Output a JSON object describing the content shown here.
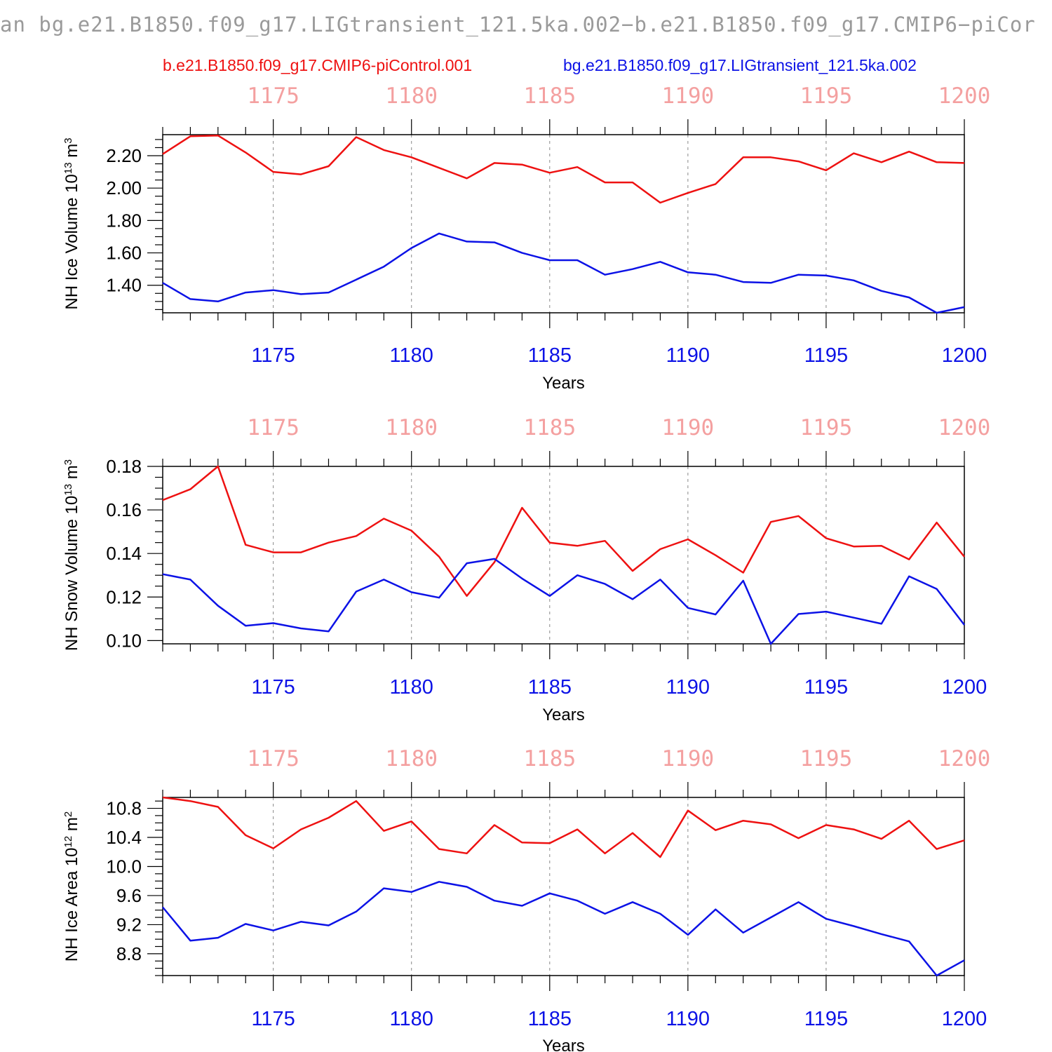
{
  "figure_title": "an bg.e21.B1850.f09_g17.LIGtransient_121.5ka.002−b.e21.B1850.f09_g17.CMIP6−piCor",
  "legend": {
    "series_a": "b.e21.B1850.f09_g17.CMIP6-piControl.001",
    "series_b": "bg.e21.B1850.f09_g17.LIGtransient_121.5ka.002"
  },
  "colors": {
    "series_a": "#ee1111",
    "series_b": "#0c12e6",
    "top_ticks": "#f4a0a0",
    "bottom_ticks": "#0c12e6",
    "title": "#9a9a9a"
  },
  "chart_data": [
    {
      "type": "line",
      "ylabel_main": "NH Ice Volume 10",
      "ylabel_exp": "13",
      "ylabel_unit": " m",
      "ylabel_unit_exp": "3",
      "xlabel": "Years",
      "xlim": [
        1171,
        1200
      ],
      "ylim": [
        1.23,
        2.33
      ],
      "y_ticks": [
        "1.40",
        "1.60",
        "1.80",
        "2.00",
        "2.20"
      ],
      "y_tick_values": [
        1.4,
        1.6,
        1.8,
        2.0,
        2.2
      ],
      "y_minor_step": 0.05,
      "x_ticks": [
        "1175",
        "1180",
        "1185",
        "1190",
        "1195",
        "1200"
      ],
      "x_tick_values": [
        1175,
        1180,
        1185,
        1190,
        1195,
        1200
      ],
      "top_x_ticks": [
        "1175",
        "1180",
        "1185",
        "1190",
        "1195",
        "1200"
      ],
      "grid": "dashed vertical at major x ticks",
      "x": [
        1171,
        1172,
        1173,
        1174,
        1175,
        1176,
        1177,
        1178,
        1179,
        1180,
        1181,
        1182,
        1183,
        1184,
        1185,
        1186,
        1187,
        1188,
        1189,
        1190,
        1191,
        1192,
        1193,
        1194,
        1195,
        1196,
        1197,
        1198,
        1199,
        1200
      ],
      "series": [
        {
          "name": "b.e21.B1850.f09_g17.CMIP6-piControl.001",
          "key": "series_a",
          "values": [
            2.21,
            2.32,
            2.325,
            2.22,
            2.1,
            2.085,
            2.135,
            2.315,
            2.235,
            2.19,
            2.125,
            2.06,
            2.155,
            2.145,
            2.095,
            2.13,
            2.035,
            2.035,
            1.91,
            1.97,
            2.025,
            2.19,
            2.19,
            2.165,
            2.11,
            2.215,
            2.16,
            2.225,
            2.16,
            2.155
          ]
        },
        {
          "name": "bg.e21.B1850.f09_g17.LIGtransient_121.5ka.002",
          "key": "series_b",
          "values": [
            1.415,
            1.315,
            1.3,
            1.355,
            1.37,
            1.345,
            1.355,
            1.435,
            1.515,
            1.63,
            1.72,
            1.67,
            1.665,
            1.6,
            1.555,
            1.555,
            1.465,
            1.5,
            1.545,
            1.48,
            1.465,
            1.42,
            1.415,
            1.465,
            1.46,
            1.43,
            1.365,
            1.325,
            1.23,
            1.265
          ]
        }
      ]
    },
    {
      "type": "line",
      "ylabel_main": "NH Snow Volume 10",
      "ylabel_exp": "13",
      "ylabel_unit": " m",
      "ylabel_unit_exp": "3",
      "xlabel": "Years",
      "xlim": [
        1171,
        1200
      ],
      "ylim": [
        0.0985,
        0.18
      ],
      "y_ticks": [
        "0.10",
        "0.12",
        "0.14",
        "0.16",
        "0.18"
      ],
      "y_tick_values": [
        0.1,
        0.12,
        0.14,
        0.16,
        0.18
      ],
      "y_minor_step": 0.005,
      "x_ticks": [
        "1175",
        "1180",
        "1185",
        "1190",
        "1195",
        "1200"
      ],
      "x_tick_values": [
        1175,
        1180,
        1185,
        1190,
        1195,
        1200
      ],
      "top_x_ticks": [
        "1175",
        "1180",
        "1185",
        "1190",
        "1195",
        "1200"
      ],
      "grid": "dashed vertical at major x ticks",
      "x": [
        1171,
        1172,
        1173,
        1174,
        1175,
        1176,
        1177,
        1178,
        1179,
        1180,
        1181,
        1182,
        1183,
        1184,
        1185,
        1186,
        1187,
        1188,
        1189,
        1190,
        1191,
        1192,
        1193,
        1194,
        1195,
        1196,
        1197,
        1198,
        1199,
        1200
      ],
      "series": [
        {
          "name": "b.e21.B1850.f09_g17.CMIP6-piControl.001",
          "key": "series_a",
          "values": [
            0.1645,
            0.1695,
            0.18,
            0.144,
            0.1405,
            0.1405,
            0.145,
            0.148,
            0.156,
            0.1505,
            0.1385,
            0.1205,
            0.136,
            0.161,
            0.145,
            0.1435,
            0.1458,
            0.132,
            0.142,
            0.1465,
            0.1392,
            0.1312,
            0.1545,
            0.1572,
            0.147,
            0.1432,
            0.1435,
            0.1373,
            0.1542,
            0.1385
          ]
        },
        {
          "name": "bg.e21.B1850.f09_g17.LIGtransient_121.5ka.002",
          "key": "series_b",
          "values": [
            0.1305,
            0.128,
            0.116,
            0.1068,
            0.108,
            0.1056,
            0.1042,
            0.1225,
            0.128,
            0.1222,
            0.1197,
            0.1355,
            0.1375,
            0.1285,
            0.1205,
            0.13,
            0.126,
            0.119,
            0.128,
            0.115,
            0.112,
            0.1275,
            0.0985,
            0.1122,
            0.1133,
            0.1105,
            0.1077,
            0.1295,
            0.1237,
            0.1072
          ]
        }
      ]
    },
    {
      "type": "line",
      "ylabel_main": "NH Ice Area 10",
      "ylabel_exp": "12",
      "ylabel_unit": " m",
      "ylabel_unit_exp": "2",
      "xlabel": "Years",
      "xlim": [
        1171,
        1200
      ],
      "ylim": [
        8.5,
        10.95
      ],
      "y_ticks": [
        "8.8",
        "9.2",
        "9.6",
        "10.0",
        "10.4",
        "10.8"
      ],
      "y_tick_values": [
        8.8,
        9.2,
        9.6,
        10.0,
        10.4,
        10.8
      ],
      "y_minor_step": 0.1,
      "x_ticks": [
        "1175",
        "1180",
        "1185",
        "1190",
        "1195",
        "1200"
      ],
      "x_tick_values": [
        1175,
        1180,
        1185,
        1190,
        1195,
        1200
      ],
      "top_x_ticks": [
        "1175",
        "1180",
        "1185",
        "1190",
        "1195",
        "1200"
      ],
      "grid": "dashed vertical at major x ticks",
      "x": [
        1171,
        1172,
        1173,
        1174,
        1175,
        1176,
        1177,
        1178,
        1179,
        1180,
        1181,
        1182,
        1183,
        1184,
        1185,
        1186,
        1187,
        1188,
        1189,
        1190,
        1191,
        1192,
        1193,
        1194,
        1195,
        1196,
        1197,
        1198,
        1199,
        1200
      ],
      "series": [
        {
          "name": "b.e21.B1850.f09_g17.CMIP6-piControl.001",
          "key": "series_a",
          "values": [
            10.95,
            10.9,
            10.82,
            10.43,
            10.25,
            10.51,
            10.67,
            10.9,
            10.49,
            10.62,
            10.24,
            10.18,
            10.57,
            10.33,
            10.32,
            10.51,
            10.18,
            10.46,
            10.13,
            10.77,
            10.5,
            10.63,
            10.58,
            10.39,
            10.57,
            10.51,
            10.38,
            10.63,
            10.24,
            10.36
          ]
        },
        {
          "name": "bg.e21.B1850.f09_g17.LIGtransient_121.5ka.002",
          "key": "series_b",
          "values": [
            9.44,
            8.98,
            9.02,
            9.21,
            9.12,
            9.24,
            9.19,
            9.38,
            9.7,
            9.65,
            9.79,
            9.72,
            9.53,
            9.46,
            9.63,
            9.53,
            9.35,
            9.51,
            9.35,
            9.06,
            9.41,
            9.09,
            9.3,
            9.51,
            9.28,
            9.18,
            9.07,
            8.97,
            8.5,
            8.71
          ]
        }
      ]
    }
  ]
}
